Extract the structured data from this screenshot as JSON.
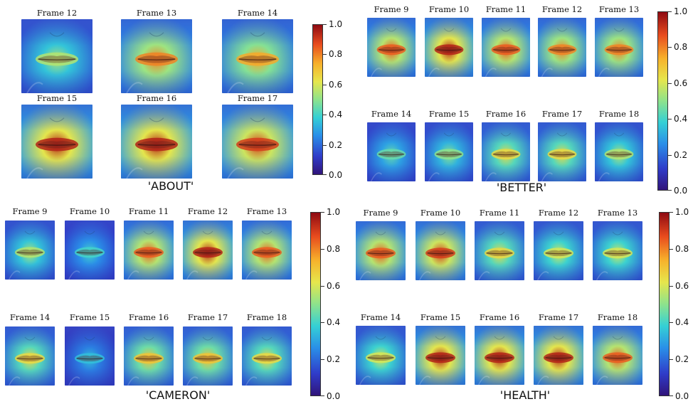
{
  "panels": [
    {
      "word": "'ABOUT'",
      "frames": [
        {
          "label": "Frame 12",
          "intensity": 0.55
        },
        {
          "label": "Frame 13",
          "intensity": 0.8
        },
        {
          "label": "Frame 14",
          "intensity": 0.75
        },
        {
          "label": "Frame 15",
          "intensity": 0.95
        },
        {
          "label": "Frame 16",
          "intensity": 0.95
        },
        {
          "label": "Frame 17",
          "intensity": 0.9
        }
      ],
      "colorbar_ticks": [
        "0.0",
        "0.2",
        "0.4",
        "0.6",
        "0.8",
        "1.0"
      ]
    },
    {
      "word": "'BETTER'",
      "frames": [
        {
          "label": "Frame 9",
          "intensity": 0.85
        },
        {
          "label": "Frame 10",
          "intensity": 0.95
        },
        {
          "label": "Frame 11",
          "intensity": 0.85
        },
        {
          "label": "Frame 12",
          "intensity": 0.8
        },
        {
          "label": "Frame 13",
          "intensity": 0.8
        },
        {
          "label": "Frame 14",
          "intensity": 0.45
        },
        {
          "label": "Frame 15",
          "intensity": 0.5
        },
        {
          "label": "Frame 16",
          "intensity": 0.65
        },
        {
          "label": "Frame 17",
          "intensity": 0.65
        },
        {
          "label": "Frame 18",
          "intensity": 0.55
        }
      ],
      "colorbar_ticks": [
        "0.0",
        "0.2",
        "0.4",
        "0.6",
        "0.8",
        "1.0"
      ]
    },
    {
      "word": "'CAMERON'",
      "frames": [
        {
          "label": "Frame 9",
          "intensity": 0.55
        },
        {
          "label": "Frame 10",
          "intensity": 0.4
        },
        {
          "label": "Frame 11",
          "intensity": 0.85
        },
        {
          "label": "Frame 12",
          "intensity": 0.95
        },
        {
          "label": "Frame 13",
          "intensity": 0.85
        },
        {
          "label": "Frame 14",
          "intensity": 0.65
        },
        {
          "label": "Frame 15",
          "intensity": 0.35
        },
        {
          "label": "Frame 16",
          "intensity": 0.7
        },
        {
          "label": "Frame 17",
          "intensity": 0.7
        },
        {
          "label": "Frame 18",
          "intensity": 0.65
        }
      ],
      "colorbar_ticks": [
        "0.0",
        "0.2",
        "0.4",
        "0.6",
        "0.8",
        "1.0"
      ]
    },
    {
      "word": "'HEALTH'",
      "frames": [
        {
          "label": "Frame 9",
          "intensity": 0.85
        },
        {
          "label": "Frame 10",
          "intensity": 0.9
        },
        {
          "label": "Frame 11",
          "intensity": 0.65
        },
        {
          "label": "Frame 12",
          "intensity": 0.6
        },
        {
          "label": "Frame 13",
          "intensity": 0.6
        },
        {
          "label": "Frame 14",
          "intensity": 0.6
        },
        {
          "label": "Frame 15",
          "intensity": 0.95
        },
        {
          "label": "Frame 16",
          "intensity": 0.95
        },
        {
          "label": "Frame 17",
          "intensity": 0.95
        },
        {
          "label": "Frame 18",
          "intensity": 0.85
        }
      ],
      "colorbar_ticks": [
        "0.0",
        "0.2",
        "0.4",
        "0.6",
        "0.8",
        "1.0"
      ]
    }
  ]
}
